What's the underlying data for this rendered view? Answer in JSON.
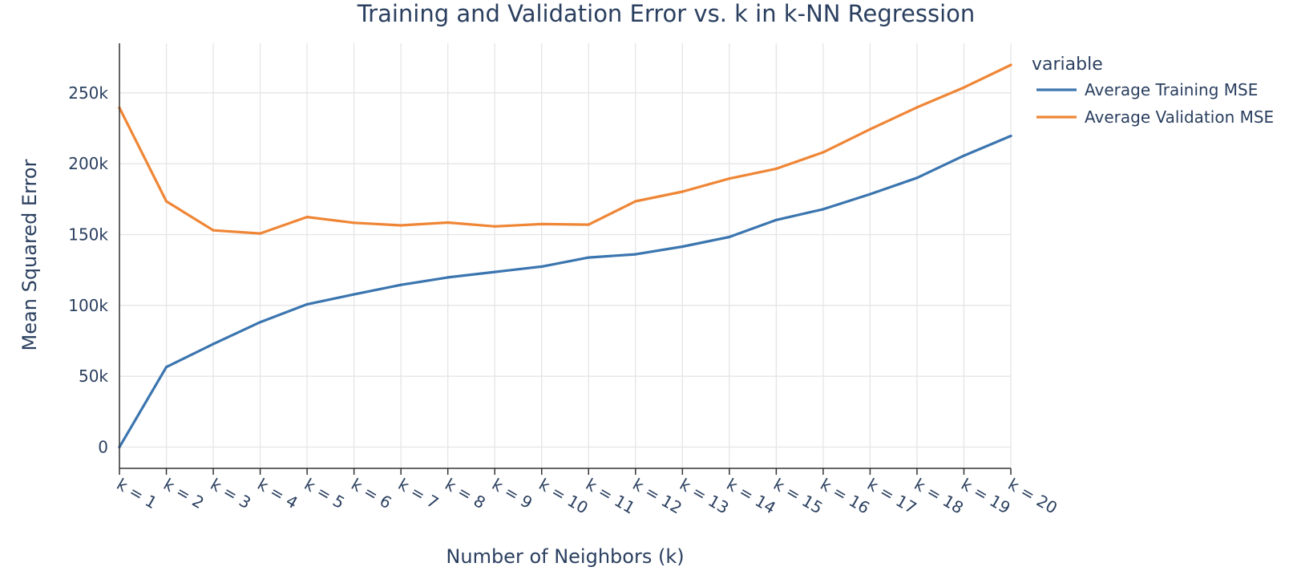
{
  "chart_data": {
    "type": "line",
    "title": "Training and Validation Error vs. k in k-NN Regression",
    "xlabel": "Number of Neighbors (k)",
    "ylabel": "Mean Squared Error",
    "categories": [
      "k = 1",
      "k = 2",
      "k = 3",
      "k = 4",
      "k = 5",
      "k = 6",
      "k = 7",
      "k = 8",
      "k = 9",
      "k = 10",
      "k = 11",
      "k = 12",
      "k = 13",
      "k = 14",
      "k = 15",
      "k = 16",
      "k = 17",
      "k = 18",
      "k = 19",
      "k = 20"
    ],
    "ylim": [
      -15000,
      285000
    ],
    "yticks": [
      0,
      50000,
      100000,
      150000,
      200000,
      250000
    ],
    "ytick_labels": [
      "0",
      "50k",
      "100k",
      "150k",
      "200k",
      "250k"
    ],
    "grid": true,
    "legend": {
      "title": "variable",
      "placement": "top-right"
    },
    "series": [
      {
        "name": "Average Training MSE",
        "color": "#3b75af",
        "values": [
          0,
          56500,
          72800,
          88200,
          100800,
          107800,
          114500,
          119800,
          123600,
          127400,
          133800,
          136100,
          141500,
          148300,
          160300,
          167900,
          178500,
          190000,
          205700,
          219600
        ]
      },
      {
        "name": "Average Validation MSE",
        "color": "#ef8636",
        "values": [
          239500,
          173500,
          153000,
          150800,
          162400,
          158300,
          156500,
          158500,
          155800,
          157400,
          157000,
          173500,
          180300,
          189500,
          196500,
          208100,
          224300,
          239800,
          253800,
          269700
        ]
      }
    ]
  }
}
